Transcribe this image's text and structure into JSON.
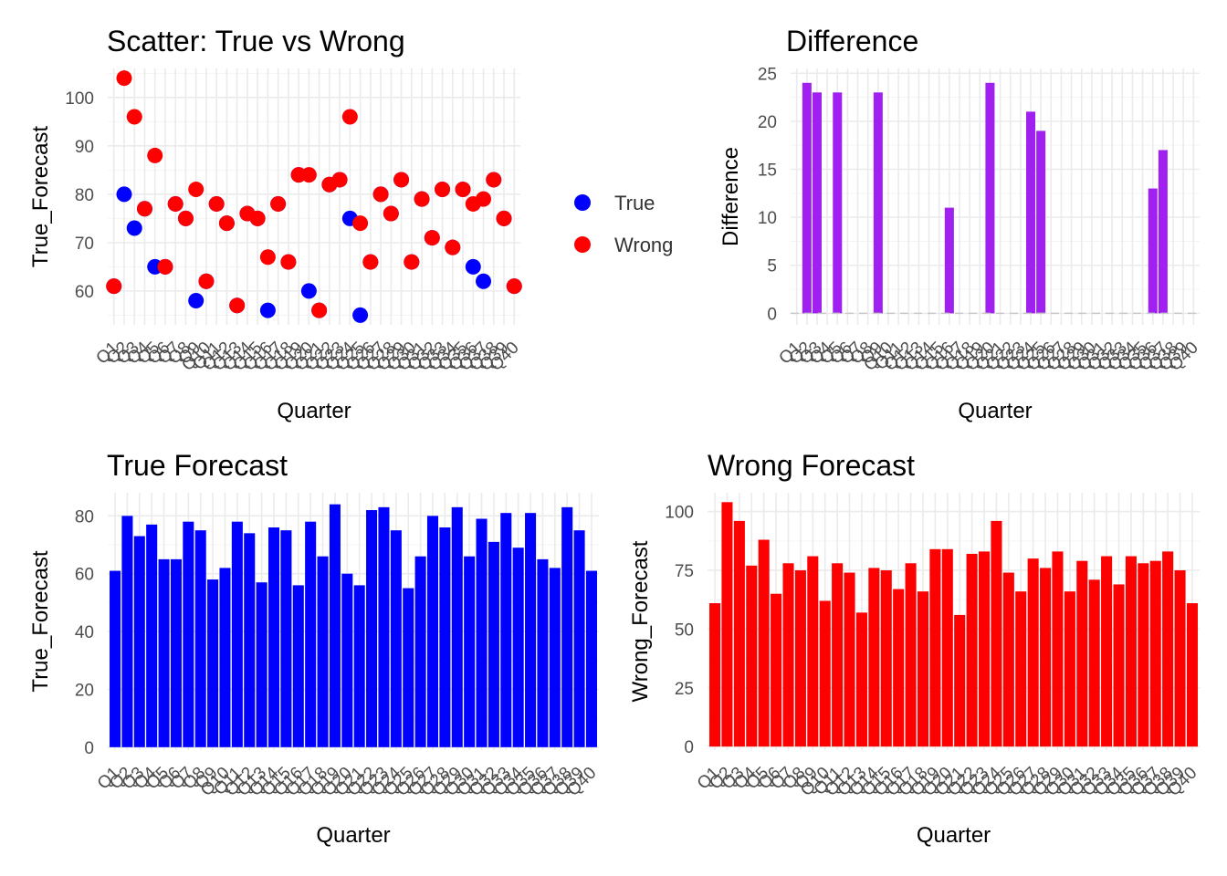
{
  "chart_data": [
    {
      "type": "scatter",
      "title": "Scatter: True vs Wrong",
      "xlabel": "Quarter",
      "ylabel": "True_Forecast",
      "ylim": [
        53,
        106
      ],
      "yticks": [
        60,
        70,
        80,
        90,
        100
      ],
      "categories": [
        "Q1",
        "Q2",
        "Q3",
        "Q4",
        "Q5",
        "Q6",
        "Q7",
        "Q8",
        "Q9",
        "Q10",
        "Q11",
        "Q12",
        "Q13",
        "Q14",
        "Q15",
        "Q16",
        "Q17",
        "Q18",
        "Q19",
        "Q20",
        "Q21",
        "Q22",
        "Q23",
        "Q24",
        "Q25",
        "Q26",
        "Q27",
        "Q28",
        "Q29",
        "Q30",
        "Q31",
        "Q32",
        "Q33",
        "Q34",
        "Q35",
        "Q36",
        "Q37",
        "Q38",
        "Q39",
        "Q40"
      ],
      "legend": "right",
      "series": [
        {
          "name": "True",
          "color": "#0000ff",
          "values": [
            61,
            80,
            73,
            77,
            65,
            65,
            78,
            75,
            58,
            62,
            78,
            74,
            57,
            76,
            75,
            56,
            78,
            66,
            84,
            60,
            56,
            82,
            83,
            75,
            55,
            66,
            80,
            76,
            83,
            66,
            79,
            71,
            81,
            69,
            81,
            65,
            62,
            83,
            75,
            61
          ]
        },
        {
          "name": "Wrong",
          "color": "#ff0000",
          "values": [
            61,
            104,
            96,
            77,
            88,
            65,
            78,
            75,
            81,
            62,
            78,
            74,
            57,
            76,
            75,
            67,
            78,
            66,
            84,
            84,
            56,
            82,
            83,
            96,
            74,
            66,
            80,
            76,
            83,
            66,
            79,
            71,
            81,
            69,
            81,
            78,
            79,
            83,
            75,
            61
          ]
        }
      ]
    },
    {
      "type": "bar",
      "title": "Difference",
      "xlabel": "Quarter",
      "ylabel": "Difference",
      "ylim": [
        -1.2,
        25.5
      ],
      "yticks": [
        0,
        5,
        10,
        15,
        20,
        25
      ],
      "color": "#a020f0",
      "categories": [
        "Q1",
        "Q2",
        "Q3",
        "Q4",
        "Q5",
        "Q6",
        "Q7",
        "Q8",
        "Q9",
        "Q10",
        "Q11",
        "Q12",
        "Q13",
        "Q14",
        "Q15",
        "Q16",
        "Q17",
        "Q18",
        "Q19",
        "Q20",
        "Q21",
        "Q22",
        "Q23",
        "Q24",
        "Q25",
        "Q26",
        "Q27",
        "Q28",
        "Q29",
        "Q30",
        "Q31",
        "Q32",
        "Q33",
        "Q34",
        "Q35",
        "Q36",
        "Q37",
        "Q38",
        "Q39",
        "Q40"
      ],
      "values": [
        0,
        24,
        23,
        0,
        23,
        0,
        0,
        0,
        23,
        0,
        0,
        0,
        0,
        0,
        0,
        11,
        0,
        0,
        0,
        24,
        0,
        0,
        0,
        21,
        19,
        0,
        0,
        0,
        0,
        0,
        0,
        0,
        0,
        0,
        0,
        13,
        17,
        0,
        0,
        0
      ]
    },
    {
      "type": "bar",
      "title": "True Forecast",
      "xlabel": "Quarter",
      "ylabel": "True_Forecast",
      "ylim": [
        -1,
        88
      ],
      "yticks": [
        0,
        20,
        40,
        60,
        80
      ],
      "color": "#0000ff",
      "categories": [
        "Q1",
        "Q2",
        "Q3",
        "Q4",
        "Q5",
        "Q6",
        "Q7",
        "Q8",
        "Q9",
        "Q10",
        "Q11",
        "Q12",
        "Q13",
        "Q14",
        "Q15",
        "Q16",
        "Q17",
        "Q18",
        "Q19",
        "Q20",
        "Q21",
        "Q22",
        "Q23",
        "Q24",
        "Q25",
        "Q26",
        "Q27",
        "Q28",
        "Q29",
        "Q30",
        "Q31",
        "Q32",
        "Q33",
        "Q34",
        "Q35",
        "Q36",
        "Q37",
        "Q38",
        "Q39",
        "Q40"
      ],
      "values": [
        61,
        80,
        73,
        77,
        65,
        65,
        78,
        75,
        58,
        62,
        78,
        74,
        57,
        76,
        75,
        56,
        78,
        66,
        84,
        60,
        56,
        82,
        83,
        75,
        55,
        66,
        80,
        76,
        83,
        66,
        79,
        71,
        81,
        69,
        81,
        65,
        62,
        83,
        75,
        61
      ]
    },
    {
      "type": "bar",
      "title": "Wrong Forecast",
      "xlabel": "Quarter",
      "ylabel": "Wrong_Forecast",
      "ylim": [
        -1.5,
        108
      ],
      "yticks": [
        0,
        25,
        50,
        75,
        100
      ],
      "color": "#ff0000",
      "categories": [
        "Q1",
        "Q2",
        "Q3",
        "Q4",
        "Q5",
        "Q6",
        "Q7",
        "Q8",
        "Q9",
        "Q10",
        "Q11",
        "Q12",
        "Q13",
        "Q14",
        "Q15",
        "Q16",
        "Q17",
        "Q18",
        "Q19",
        "Q20",
        "Q21",
        "Q22",
        "Q23",
        "Q24",
        "Q25",
        "Q26",
        "Q27",
        "Q28",
        "Q29",
        "Q30",
        "Q31",
        "Q32",
        "Q33",
        "Q34",
        "Q35",
        "Q36",
        "Q37",
        "Q38",
        "Q39",
        "Q40"
      ],
      "values": [
        61,
        104,
        96,
        77,
        88,
        65,
        78,
        75,
        81,
        62,
        78,
        74,
        57,
        76,
        75,
        67,
        78,
        66,
        84,
        84,
        56,
        82,
        83,
        96,
        74,
        66,
        80,
        76,
        83,
        66,
        79,
        71,
        81,
        69,
        81,
        78,
        79,
        83,
        75,
        61
      ]
    }
  ]
}
